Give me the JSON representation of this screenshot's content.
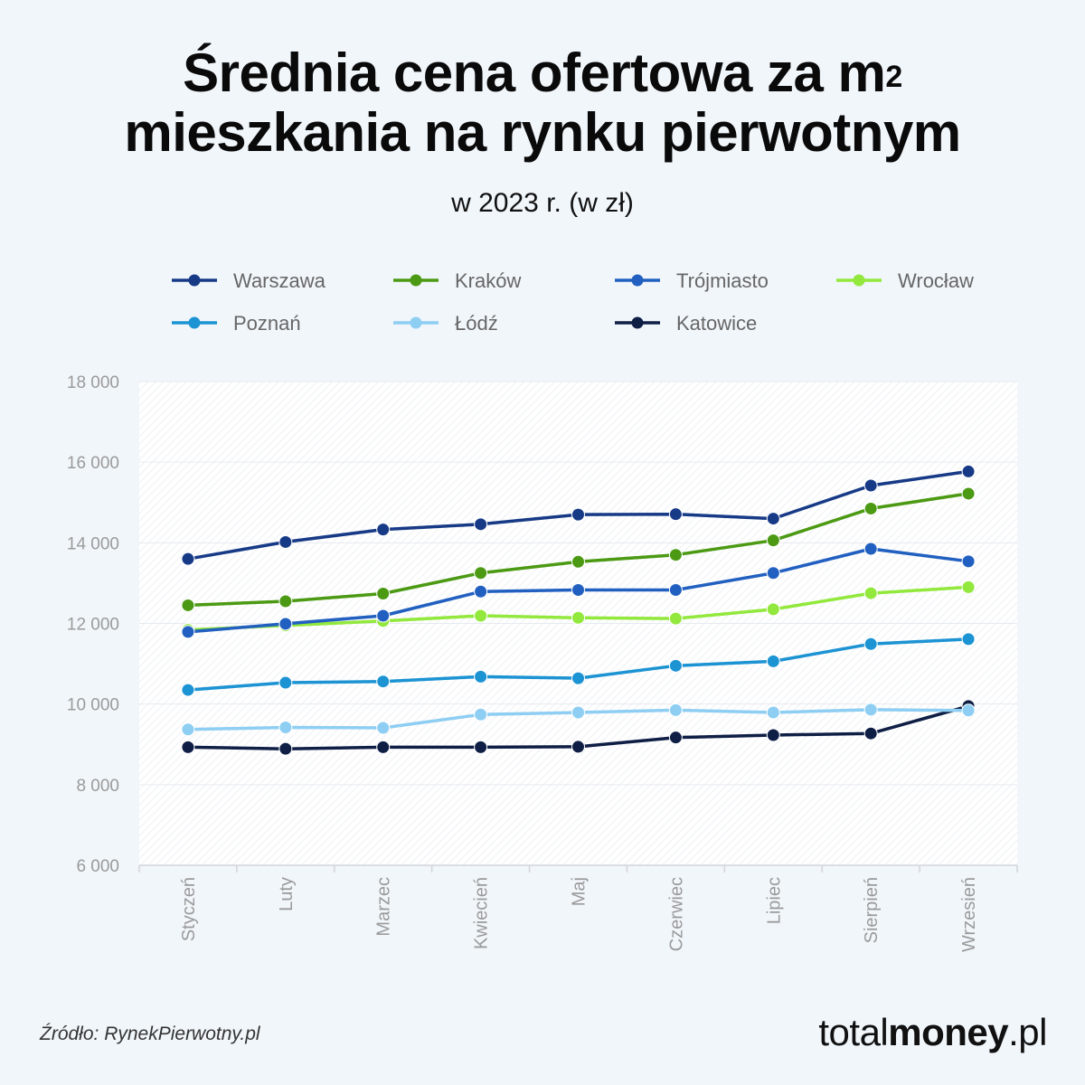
{
  "header": {
    "title_line1": "Średnia cena ofertowa za m",
    "title_sup": "2",
    "title_line2": "mieszkania na rynku pierwotnym",
    "subtitle": "w 2023 r. (w zł)"
  },
  "chart_data": {
    "type": "line",
    "title": "Średnia cena ofertowa za m² mieszkania na rynku pierwotnym",
    "subtitle": "w 2023 r. (w zł)",
    "xlabel": "",
    "ylabel": "",
    "ylim": [
      6000,
      18000
    ],
    "yticks": [
      6000,
      8000,
      10000,
      12000,
      14000,
      16000,
      18000
    ],
    "ytick_labels": [
      "6 000",
      "8 000",
      "10 000",
      "12 000",
      "14 000",
      "16 000",
      "18 000"
    ],
    "grid": true,
    "legend_position": "top",
    "categories": [
      "Styczeń",
      "Luty",
      "Marzec",
      "Kwiecień",
      "Maj",
      "Czerwiec",
      "Lipiec",
      "Sierpień",
      "Wrzesień"
    ],
    "series": [
      {
        "name": "Warszawa",
        "color": "#173a87",
        "values": [
          13600,
          14020,
          14330,
          14460,
          14700,
          14710,
          14600,
          15420,
          15770
        ]
      },
      {
        "name": "Kraków",
        "color": "#4c9a14",
        "values": [
          12450,
          12550,
          12740,
          13250,
          13530,
          13700,
          14060,
          14850,
          15220
        ]
      },
      {
        "name": "Trójmiasto",
        "color": "#2160c0",
        "values": [
          11790,
          11990,
          12190,
          12790,
          12830,
          12830,
          13250,
          13850,
          13540
        ]
      },
      {
        "name": "Wrocław",
        "color": "#92e83c",
        "values": [
          11840,
          11950,
          12060,
          12190,
          12140,
          12120,
          12350,
          12750,
          12900
        ]
      },
      {
        "name": "Poznań",
        "color": "#1c93d3",
        "values": [
          10350,
          10530,
          10560,
          10680,
          10640,
          10950,
          11060,
          11490,
          11610
        ]
      },
      {
        "name": "Łódź",
        "color": "#8ecef3",
        "values": [
          9370,
          9420,
          9410,
          9740,
          9790,
          9850,
          9790,
          9860,
          9840
        ]
      },
      {
        "name": "Katowice",
        "color": "#0f1e45",
        "values": [
          8930,
          8890,
          8930,
          8930,
          8940,
          9170,
          9230,
          9270,
          9950
        ]
      }
    ]
  },
  "footer": {
    "source": "Źródło: RynekPierwotny.pl",
    "brand_light": "total",
    "brand_bold": "money",
    "brand_suffix": ".pl"
  }
}
